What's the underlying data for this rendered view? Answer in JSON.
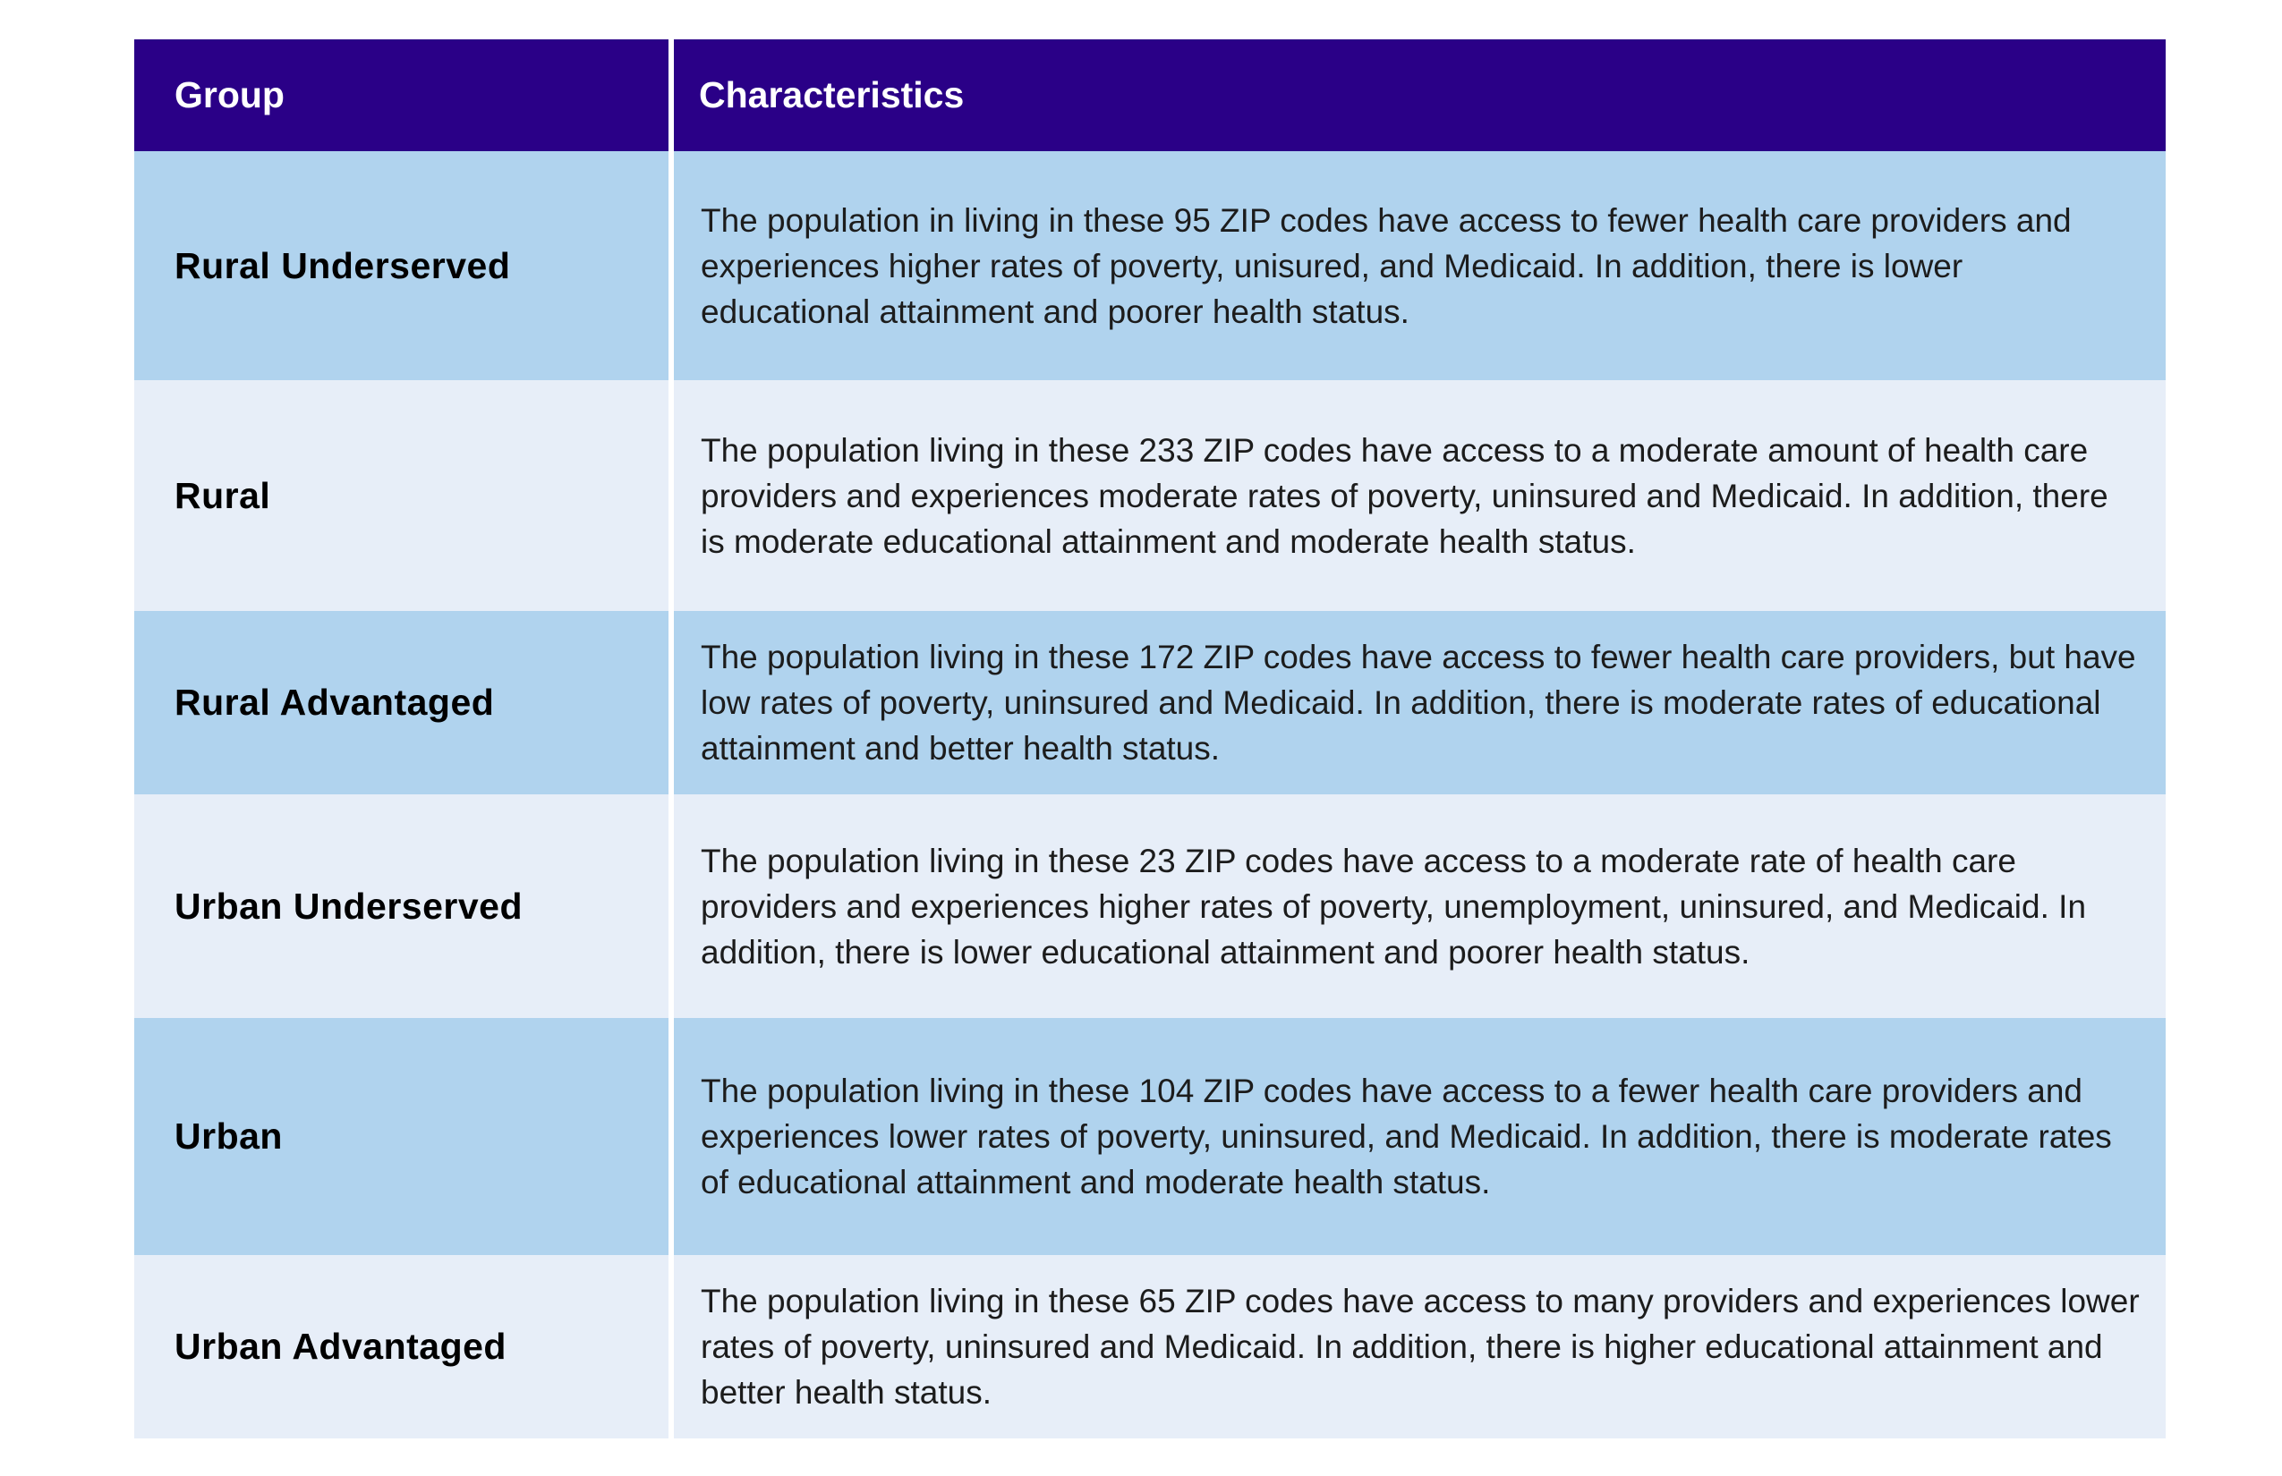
{
  "table": {
    "columns": [
      {
        "label": "Group"
      },
      {
        "label": "Characteristics"
      }
    ],
    "rows": [
      {
        "group": "Rural Underserved",
        "characteristics": "The population in living in these 95 ZIP codes have access to fewer health care providers and experiences higher rates of poverty, unisured, and Medicaid. In addition, there is lower educational attainment and poorer health status."
      },
      {
        "group": "Rural",
        "characteristics": "The population living in these 233 ZIP codes have access to a moderate amount of health care providers and experiences moderate rates of poverty, uninsured and Medicaid. In addition, there is moderate educational attainment and moderate health status."
      },
      {
        "group": "Rural Advantaged",
        "characteristics": "The population living in these 172 ZIP codes have access to fewer health care providers, but have low rates of poverty, uninsured and Medicaid. In addition, there is moderate rates of educational attainment and better health status."
      },
      {
        "group": "Urban Underserved",
        "characteristics": "The population living in these 23 ZIP codes have access to a moderate rate of health care providers and experiences higher rates of poverty, unemployment, uninsured, and Medicaid. In addition, there is lower educational attainment and poorer health status."
      },
      {
        "group": "Urban",
        "characteristics": "The population living in these 104 ZIP codes have access to a fewer health care providers and experiences lower rates of poverty, uninsured, and Medicaid. In addition, there is moderate rates of educational attainment and moderate health status."
      },
      {
        "group": "Urban Advantaged",
        "characteristics": "The population living in these 65 ZIP codes have access to many providers and experiences lower rates of poverty, uninsured and Medicaid. In addition, there is higher educational attainment and better health status."
      }
    ],
    "colors": {
      "header_bg": "#2A0087",
      "header_text": "#FFFFFF",
      "row_alt_dark": "#B0D3EE",
      "row_alt_light": "#E7EEF8",
      "body_text": "#1C1C1C",
      "divider": "#FFFFFF"
    }
  }
}
